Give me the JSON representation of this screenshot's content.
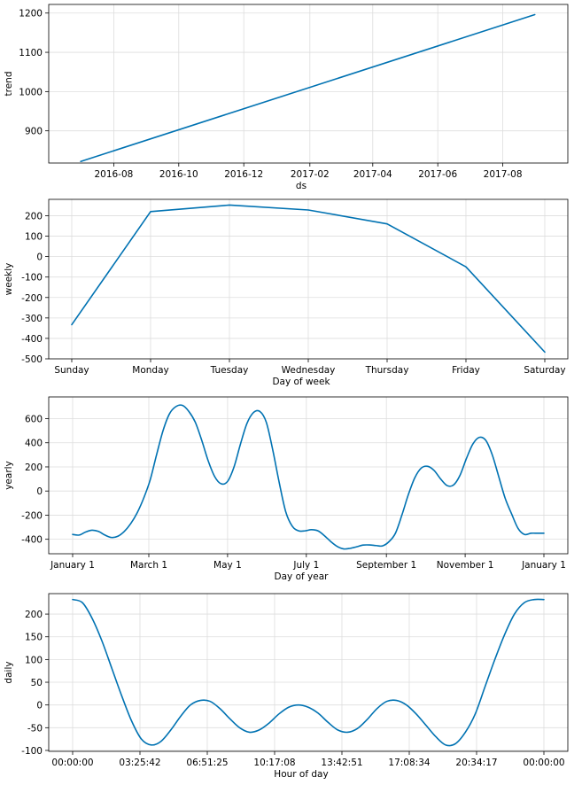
{
  "chart_data": [
    {
      "type": "line",
      "panel": "trend",
      "xlabel": "ds",
      "ylabel": "trend",
      "x_tick_labels": [
        "2016-08",
        "2016-10",
        "2016-12",
        "2017-02",
        "2017-04",
        "2017-06",
        "2017-08"
      ],
      "y_ticks": [
        900,
        1000,
        1100,
        1200
      ],
      "xlim": [
        "2016-06-01",
        "2017-10-01"
      ],
      "ylim": [
        818,
        1222
      ],
      "grid": true,
      "color": "#0072B2",
      "x": [
        "2016-07-01",
        "2017-08-31"
      ],
      "y": [
        822,
        1196
      ]
    },
    {
      "type": "line",
      "panel": "weekly",
      "xlabel": "Day of week",
      "ylabel": "weekly",
      "categories": [
        "Sunday",
        "Monday",
        "Tuesday",
        "Wednesday",
        "Thursday",
        "Friday",
        "Saturday"
      ],
      "y_ticks": [
        -500,
        -400,
        -300,
        -200,
        -100,
        0,
        100,
        200
      ],
      "ylim": [
        -500,
        280
      ],
      "grid": true,
      "color": "#0072B2",
      "values": [
        -333,
        220,
        252,
        228,
        160,
        -50,
        -467
      ]
    },
    {
      "type": "line",
      "panel": "yearly",
      "xlabel": "Day of year",
      "ylabel": "yearly",
      "x_tick_labels": [
        "January 1",
        "March 1",
        "May 1",
        "July 1",
        "September 1",
        "November 1",
        "January 1"
      ],
      "x_tick_days": [
        0,
        59,
        120,
        181,
        243,
        304,
        365
      ],
      "y_ticks": [
        -400,
        -200,
        0,
        200,
        400,
        600
      ],
      "ylim": [
        -520,
        780
      ],
      "grid": true,
      "color": "#0072B2",
      "x": [
        0,
        5,
        10,
        15,
        20,
        25,
        30,
        35,
        40,
        45,
        50,
        55,
        60,
        65,
        70,
        75,
        80,
        85,
        90,
        95,
        100,
        105,
        110,
        115,
        120,
        125,
        130,
        135,
        140,
        145,
        150,
        155,
        160,
        165,
        170,
        175,
        180,
        185,
        190,
        195,
        200,
        205,
        210,
        215,
        220,
        225,
        230,
        235,
        240,
        245,
        250,
        255,
        260,
        265,
        270,
        275,
        280,
        285,
        290,
        295,
        300,
        305,
        310,
        315,
        320,
        325,
        330,
        335,
        340,
        345,
        350,
        355,
        360,
        365
      ],
      "y": [
        -360,
        -365,
        -340,
        -325,
        -335,
        -365,
        -385,
        -375,
        -335,
        -270,
        -180,
        -60,
        90,
        300,
        500,
        640,
        700,
        710,
        660,
        570,
        420,
        250,
        120,
        60,
        80,
        200,
        390,
        560,
        650,
        660,
        570,
        340,
        70,
        -170,
        -290,
        -330,
        -330,
        -320,
        -330,
        -370,
        -420,
        -460,
        -480,
        -475,
        -462,
        -448,
        -447,
        -452,
        -455,
        -420,
        -350,
        -200,
        -30,
        110,
        190,
        205,
        170,
        100,
        45,
        50,
        130,
        270,
        390,
        445,
        420,
        300,
        120,
        -60,
        -190,
        -310,
        -360,
        -350,
        -350,
        -350
      ]
    },
    {
      "type": "line",
      "panel": "daily",
      "xlabel": "Hour of day",
      "ylabel": "daily",
      "x_tick_labels": [
        "00:00:00",
        "03:25:42",
        "06:51:25",
        "10:17:08",
        "13:42:51",
        "17:08:34",
        "20:34:17",
        "00:00:00"
      ],
      "y_ticks": [
        -100,
        -50,
        0,
        50,
        100,
        150,
        200
      ],
      "ylim": [
        -102,
        245
      ],
      "grid": true,
      "color": "#0072B2",
      "x": [
        0,
        0.5,
        1,
        1.5,
        2,
        2.5,
        3,
        3.5,
        4,
        4.5,
        5,
        5.5,
        6,
        6.5,
        7,
        7.5,
        8,
        8.5,
        9,
        9.5,
        10,
        10.5,
        11,
        11.5,
        12,
        12.5,
        13,
        13.5,
        14,
        14.5,
        15,
        15.5,
        16,
        16.5,
        17,
        17.5,
        18,
        18.5,
        19,
        19.5,
        20,
        20.5,
        21,
        21.5,
        22,
        22.5,
        23,
        23.5,
        24
      ],
      "y": [
        232,
        225,
        190,
        140,
        80,
        20,
        -35,
        -75,
        -88,
        -80,
        -55,
        -25,
        0,
        10,
        8,
        -8,
        -30,
        -50,
        -60,
        -55,
        -40,
        -20,
        -5,
        0,
        -5,
        -18,
        -38,
        -55,
        -60,
        -52,
        -32,
        -8,
        8,
        10,
        0,
        -20,
        -45,
        -70,
        -88,
        -85,
        -60,
        -20,
        40,
        100,
        155,
        200,
        225,
        232,
        232
      ]
    }
  ]
}
